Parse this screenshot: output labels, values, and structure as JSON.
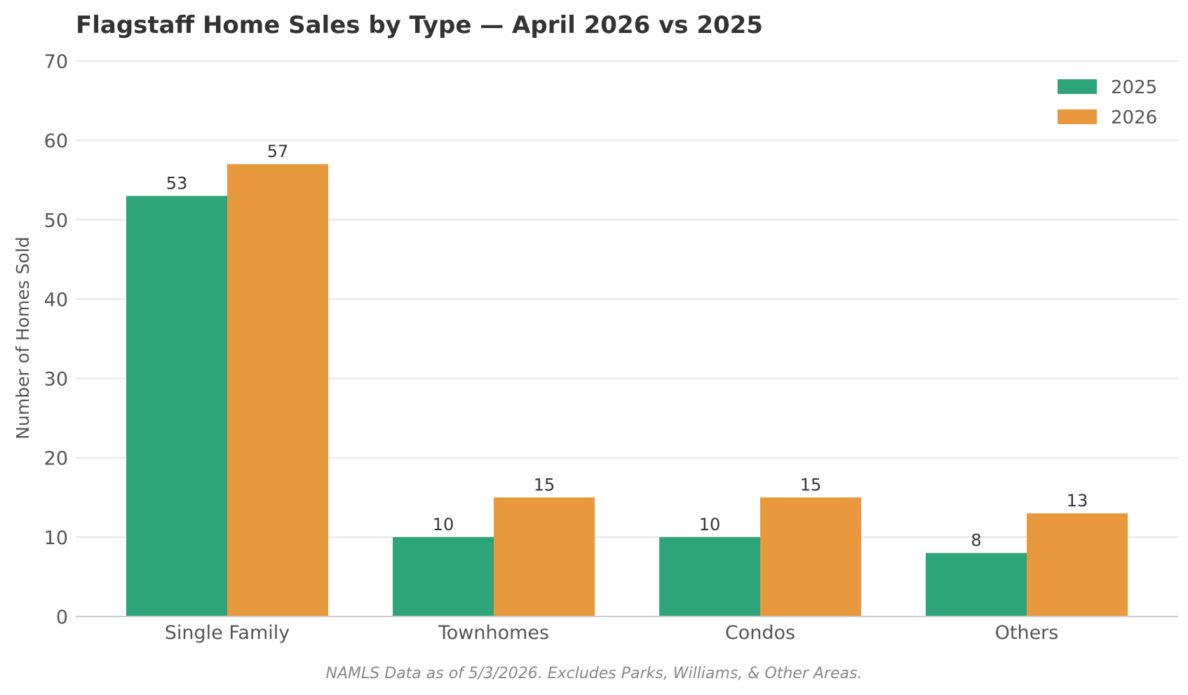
{
  "chart_data": {
    "type": "bar",
    "title": "Flagstaff Home Sales by Type — April 2026 vs 2025",
    "xlabel": "",
    "ylabel": "Number of Homes Sold",
    "categories": [
      "Single Family",
      "Townhomes",
      "Condos",
      "Others"
    ],
    "series": [
      {
        "name": "2025",
        "color": "#2ea47a",
        "values": [
          53,
          10,
          10,
          8
        ]
      },
      {
        "name": "2026",
        "color": "#e8983d",
        "values": [
          57,
          15,
          15,
          13
        ]
      }
    ],
    "ylim": [
      0,
      70
    ],
    "yticks": [
      0,
      10,
      20,
      30,
      40,
      50,
      60,
      70
    ],
    "grid": true,
    "legend": "top-right",
    "footnote": "NAMLS Data as of 5/3/2026. Excludes Parks, Williams, & Other Areas."
  }
}
